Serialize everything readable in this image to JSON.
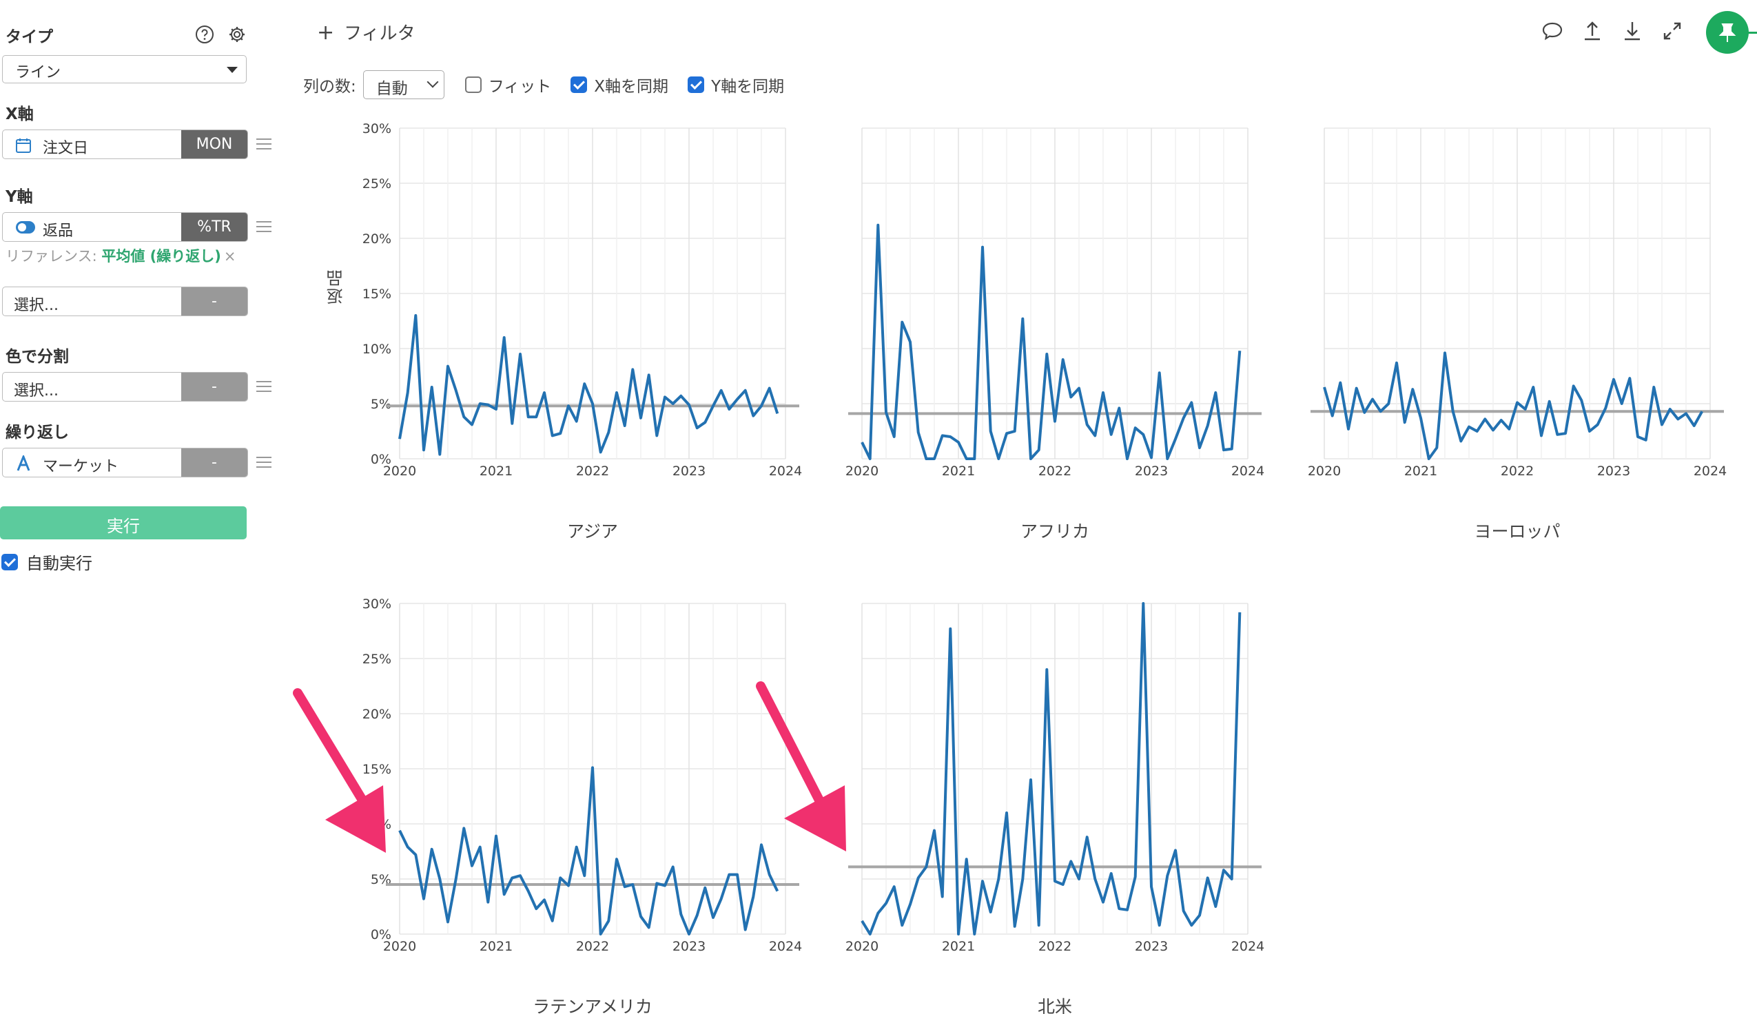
{
  "panel": {
    "type_label": "タイプ",
    "type_value": "ライン",
    "x_axis_label": "X軸",
    "x_field": "注文日",
    "x_tag": "MON",
    "y_axis_label": "Y軸",
    "y_field": "返品",
    "y_tag": "%TR",
    "reference_prefix": "リファレンス: ",
    "reference_value": "平均値 (繰り返し)",
    "reference_close": "×",
    "extra_select": "選択...",
    "extra_tag": "-",
    "color_label": "色で分割",
    "color_select": "選択...",
    "color_tag": "-",
    "repeat_label": "繰り返し",
    "repeat_field": "マーケット",
    "repeat_tag": "-",
    "run_button": "実行",
    "auto_run": "自動実行"
  },
  "toolbar": {
    "filter_plus": "+",
    "filter_label": "フィルタ",
    "columns_label": "列の数:",
    "columns_value": "自動",
    "fit_label": "フィット",
    "sync_x_label": "X軸を同期",
    "sync_y_label": "Y軸を同期",
    "icons": [
      "comment-icon",
      "upload-icon",
      "download-icon",
      "expand-icon",
      "pin-icon"
    ]
  },
  "colors": {
    "line": "#2271b1",
    "reference": "#a6a6a6",
    "accent": "#1daa5e",
    "arrow": "#f0306e"
  },
  "chart_data": {
    "type": "line",
    "ylabel": "返品",
    "yticks": [
      "0%",
      "5%",
      "10%",
      "15%",
      "20%",
      "25%",
      "30%"
    ],
    "ylim": [
      0,
      30
    ],
    "xticks": [
      "2020",
      "2021",
      "2022",
      "2023",
      "2024"
    ],
    "xlim": [
      2020,
      2024
    ],
    "grid": true,
    "panels": [
      {
        "name": "アジア",
        "reference": 4.8,
        "values": [
          1.8,
          6.0,
          13.0,
          0.8,
          6.5,
          0.4,
          8.4,
          6.2,
          3.8,
          3.1,
          5.0,
          4.9,
          4.5,
          11.0,
          3.2,
          9.5,
          3.8,
          3.8,
          6.0,
          2.1,
          2.3,
          4.8,
          3.4,
          6.8,
          5.0,
          0.6,
          2.4,
          6.0,
          3.0,
          8.1,
          3.7,
          7.6,
          2.1,
          5.6,
          5.0,
          5.7,
          4.9,
          2.8,
          3.3,
          4.8,
          6.2,
          4.5,
          5.4,
          6.2,
          3.9,
          4.8,
          6.4,
          4.1
        ]
      },
      {
        "name": "アフリカ",
        "reference": 4.1,
        "values": [
          1.5,
          0.0,
          21.2,
          4.2,
          2.0,
          12.4,
          10.6,
          2.4,
          0.0,
          0.0,
          2.1,
          2.0,
          1.5,
          0.0,
          0.0,
          19.2,
          2.5,
          0.0,
          2.3,
          2.5,
          12.7,
          0.0,
          0.8,
          9.5,
          3.4,
          9.0,
          5.6,
          6.4,
          3.1,
          2.1,
          6.0,
          2.2,
          4.6,
          0.0,
          2.8,
          2.2,
          0.1,
          7.8,
          0.0,
          1.8,
          3.7,
          5.1,
          1.0,
          3.0,
          6.0,
          0.8,
          0.9,
          9.8
        ]
      },
      {
        "name": "ヨーロッパ",
        "reference": 4.3,
        "values": [
          6.5,
          3.9,
          6.9,
          2.7,
          6.4,
          4.2,
          5.4,
          4.3,
          5.0,
          8.7,
          3.3,
          6.3,
          3.7,
          0.0,
          1.0,
          9.6,
          4.3,
          1.6,
          2.9,
          2.5,
          3.6,
          2.6,
          3.5,
          2.7,
          5.1,
          4.5,
          6.5,
          2.1,
          5.2,
          2.2,
          2.3,
          6.6,
          5.3,
          2.5,
          3.1,
          4.6,
          7.2,
          5.0,
          7.3,
          2.0,
          1.7,
          6.5,
          3.1,
          4.5,
          3.6,
          4.1,
          3.0,
          4.3
        ]
      },
      {
        "name": "ラテンアメリカ",
        "reference": 4.5,
        "values": [
          9.4,
          7.9,
          7.2,
          3.2,
          7.7,
          5.0,
          1.1,
          5.0,
          9.6,
          6.2,
          7.9,
          2.9,
          8.9,
          3.6,
          5.1,
          5.3,
          3.9,
          2.3,
          3.1,
          1.2,
          5.1,
          4.4,
          7.9,
          5.3,
          15.1,
          0.0,
          1.2,
          6.8,
          4.3,
          4.5,
          1.6,
          0.6,
          4.6,
          4.4,
          6.1,
          1.8,
          0.0,
          1.7,
          4.2,
          1.5,
          3.2,
          5.4,
          5.4,
          0.4,
          3.4,
          8.1,
          5.4,
          3.9
        ]
      },
      {
        "name": "北米",
        "reference": 6.1,
        "values": [
          1.2,
          0.0,
          1.9,
          2.8,
          4.3,
          0.8,
          2.7,
          5.1,
          6.1,
          9.4,
          3.4,
          27.7,
          0.0,
          6.8,
          0.0,
          4.8,
          2.0,
          5.0,
          11.0,
          0.7,
          5.0,
          14.0,
          0.8,
          24.0,
          4.8,
          4.5,
          6.6,
          5.0,
          8.8,
          5.0,
          2.9,
          5.5,
          2.3,
          2.2,
          5.2,
          30.0,
          4.3,
          0.8,
          5.3,
          7.6,
          2.1,
          0.8,
          1.7,
          5.1,
          2.5,
          5.8,
          5.0,
          29.2
        ]
      }
    ]
  }
}
